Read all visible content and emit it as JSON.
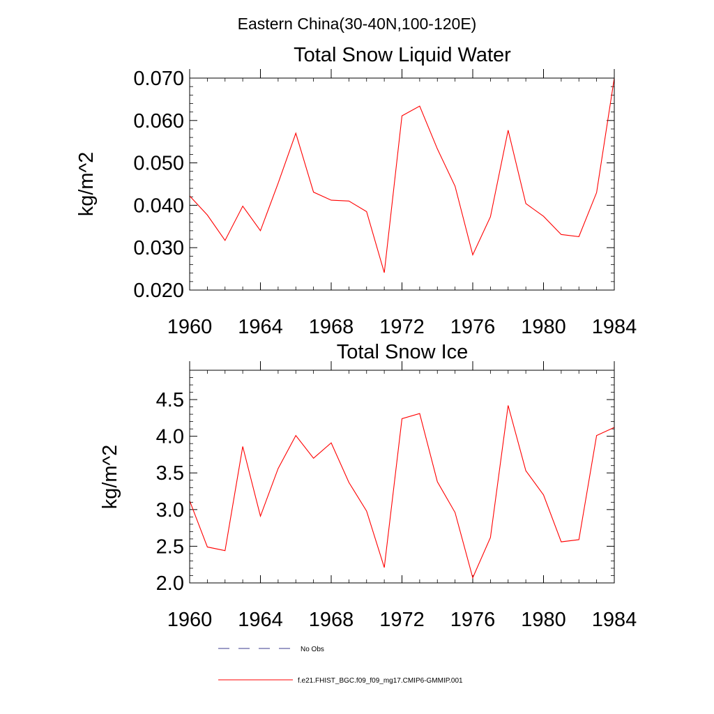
{
  "figure": {
    "suptitle": "Eastern China(30-40N,100-120E)"
  },
  "chart_data": [
    {
      "type": "line",
      "title": "Total Snow Liquid Water",
      "xlabel": "",
      "ylabel": "kg/m^2",
      "xlim": [
        1960,
        1984
      ],
      "ylim": [
        0.02,
        0.07
      ],
      "xticks": [
        "1960",
        "1964",
        "1968",
        "1972",
        "1976",
        "1980",
        "1984"
      ],
      "xtick_values": [
        1960,
        1964,
        1968,
        1972,
        1976,
        1980,
        1984
      ],
      "yticks": [
        "0.020",
        "0.030",
        "0.040",
        "0.050",
        "0.060",
        "0.070"
      ],
      "ytick_values": [
        0.02,
        0.03,
        0.04,
        0.05,
        0.06,
        0.07
      ],
      "series": [
        {
          "name": "f.e21.FHIST_BGC.f09_f09_mg17.CMIP6-GMMIP.001",
          "color": "#ff0000",
          "x": [
            1960,
            1961,
            1962,
            1963,
            1964,
            1965,
            1966,
            1967,
            1968,
            1969,
            1970,
            1971,
            1972,
            1973,
            1974,
            1975,
            1976,
            1977,
            1978,
            1979,
            1980,
            1981,
            1982,
            1983,
            1984
          ],
          "values": [
            0.0422,
            0.0377,
            0.0317,
            0.0398,
            0.034,
            0.0452,
            0.057,
            0.0431,
            0.0412,
            0.041,
            0.0385,
            0.0241,
            0.0611,
            0.0634,
            0.0533,
            0.0445,
            0.0283,
            0.0373,
            0.0577,
            0.0404,
            0.0374,
            0.0331,
            0.0326,
            0.043,
            0.07
          ]
        }
      ]
    },
    {
      "type": "line",
      "title": "Total Snow Ice",
      "xlabel": "",
      "ylabel": "kg/m^2",
      "xlim": [
        1960,
        1984
      ],
      "ylim": [
        2.0,
        4.9
      ],
      "xticks": [
        "1960",
        "1964",
        "1968",
        "1972",
        "1976",
        "1980",
        "1984"
      ],
      "xtick_values": [
        1960,
        1964,
        1968,
        1972,
        1976,
        1980,
        1984
      ],
      "yticks": [
        "2.0",
        "2.5",
        "3.0",
        "3.5",
        "4.0",
        "4.5"
      ],
      "ytick_values": [
        2.0,
        2.5,
        3.0,
        3.5,
        4.0,
        4.5
      ],
      "series": [
        {
          "name": "f.e21.FHIST_BGC.f09_f09_mg17.CMIP6-GMMIP.001",
          "color": "#ff0000",
          "x": [
            1960,
            1961,
            1962,
            1963,
            1964,
            1965,
            1966,
            1967,
            1968,
            1969,
            1970,
            1971,
            1972,
            1973,
            1974,
            1975,
            1976,
            1977,
            1978,
            1979,
            1980,
            1981,
            1982,
            1983,
            1984
          ],
          "values": [
            3.12,
            2.49,
            2.44,
            3.86,
            2.91,
            3.56,
            4.01,
            3.7,
            3.91,
            3.37,
            2.98,
            2.21,
            4.24,
            4.31,
            3.38,
            2.96,
            2.07,
            2.62,
            4.42,
            3.53,
            3.2,
            2.56,
            2.59,
            4.01,
            4.12
          ]
        }
      ]
    }
  ],
  "legend": {
    "entries": [
      {
        "label": "No Obs",
        "color": "#0000a0",
        "style": "dashed"
      },
      {
        "label": "f.e21.FHIST_BGC.f09_f09_mg17.CMIP6-GMMIP.001",
        "color": "#ff0000",
        "style": "solid"
      }
    ]
  }
}
